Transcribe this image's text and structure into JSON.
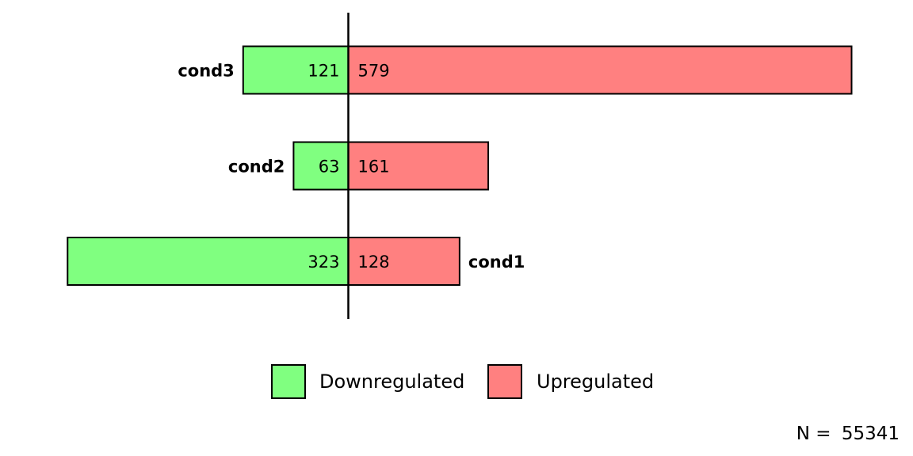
{
  "chart_data": {
    "type": "bar",
    "orientation": "horizontal-diverging",
    "categories": [
      "cond1",
      "cond2",
      "cond3"
    ],
    "series": [
      {
        "name": "Downregulated",
        "values": [
          323,
          63,
          121
        ],
        "color": "#80ff80"
      },
      {
        "name": "Upregulated",
        "values": [
          128,
          161,
          579
        ],
        "color": "#ff8080"
      }
    ],
    "legend_position": "bottom",
    "footer": {
      "label": "N = ",
      "value": "55341"
    }
  }
}
